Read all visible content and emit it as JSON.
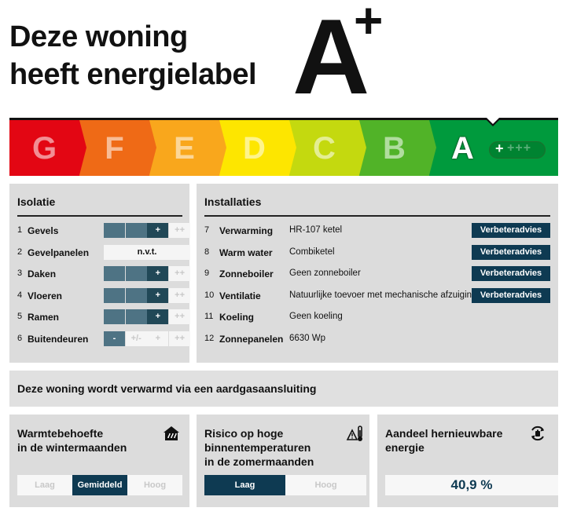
{
  "header": {
    "title_line1": "Deze woning",
    "title_line2": "heeft energielabel",
    "label_letter": "A",
    "label_suffix": "+"
  },
  "scale": {
    "segments": [
      {
        "letter": "G",
        "color": "#e30613"
      },
      {
        "letter": "F",
        "color": "#ef6a16"
      },
      {
        "letter": "E",
        "color": "#f9a71c"
      },
      {
        "letter": "D",
        "color": "#fde600"
      },
      {
        "letter": "C",
        "color": "#c4d90f"
      },
      {
        "letter": "B",
        "color": "#51b328"
      },
      {
        "letter": "A",
        "color": "#009a3d"
      }
    ],
    "active_letter": "A",
    "plus_active": "+",
    "plus_rest": "+++"
  },
  "isolatie": {
    "title": "Isolatie",
    "gauge_labels": [
      "-",
      "+/-",
      "+",
      "++"
    ],
    "rows": [
      {
        "num": "1",
        "name": "Gevels",
        "level": "+"
      },
      {
        "num": "2",
        "name": "Gevelpanelen",
        "level": "n.v.t."
      },
      {
        "num": "3",
        "name": "Daken",
        "level": "+"
      },
      {
        "num": "4",
        "name": "Vloeren",
        "level": "+"
      },
      {
        "num": "5",
        "name": "Ramen",
        "level": "+"
      },
      {
        "num": "6",
        "name": "Buitendeuren",
        "level": "-"
      }
    ]
  },
  "installaties": {
    "title": "Installaties",
    "advice_label": "Verbeteradvies",
    "rows": [
      {
        "num": "7",
        "name": "Verwarming",
        "value": "HR-107 ketel",
        "advice": true
      },
      {
        "num": "8",
        "name": "Warm water",
        "value": "Combiketel",
        "advice": true
      },
      {
        "num": "9",
        "name": "Zonneboiler",
        "value": "Geen zonneboiler",
        "advice": true
      },
      {
        "num": "10",
        "name": "Ventilatie",
        "value": "Natuurlijke toevoer met mechanische afzuiging",
        "advice": true
      },
      {
        "num": "11",
        "name": "Koeling",
        "value": "Geen koeling",
        "advice": false
      },
      {
        "num": "12",
        "name": "Zonnepanelen",
        "value": "6630 Wp",
        "advice": false
      }
    ]
  },
  "heating": {
    "text": "Deze woning wordt verwarmd via een aardgasaansluiting"
  },
  "cards": {
    "warmte": {
      "title_line1": "Warmtebehoefte",
      "title_line2": "in de wintermaanden",
      "icon": "house-heat-icon",
      "options": [
        "Laag",
        "Gemiddeld",
        "Hoog"
      ],
      "selected": "Gemiddeld"
    },
    "risico": {
      "title_line1": "Risico op hoge",
      "title_line2": "binnentemperaturen",
      "title_line3": "in de zomermaanden",
      "icon": "thermometer-warning-icon",
      "options": [
        "Laag",
        "Hoog"
      ],
      "selected": "Laag"
    },
    "hernieuwbaar": {
      "title_line1": "Aandeel hernieuwbare",
      "title_line2": "energie",
      "icon": "renewable-cycle-icon",
      "value": "40,9 %"
    }
  },
  "colors": {
    "panel": "#dcdcdc",
    "navy": "#0e3a52",
    "gauge_fill": "#4e7384",
    "gauge_mark": "#214857"
  }
}
